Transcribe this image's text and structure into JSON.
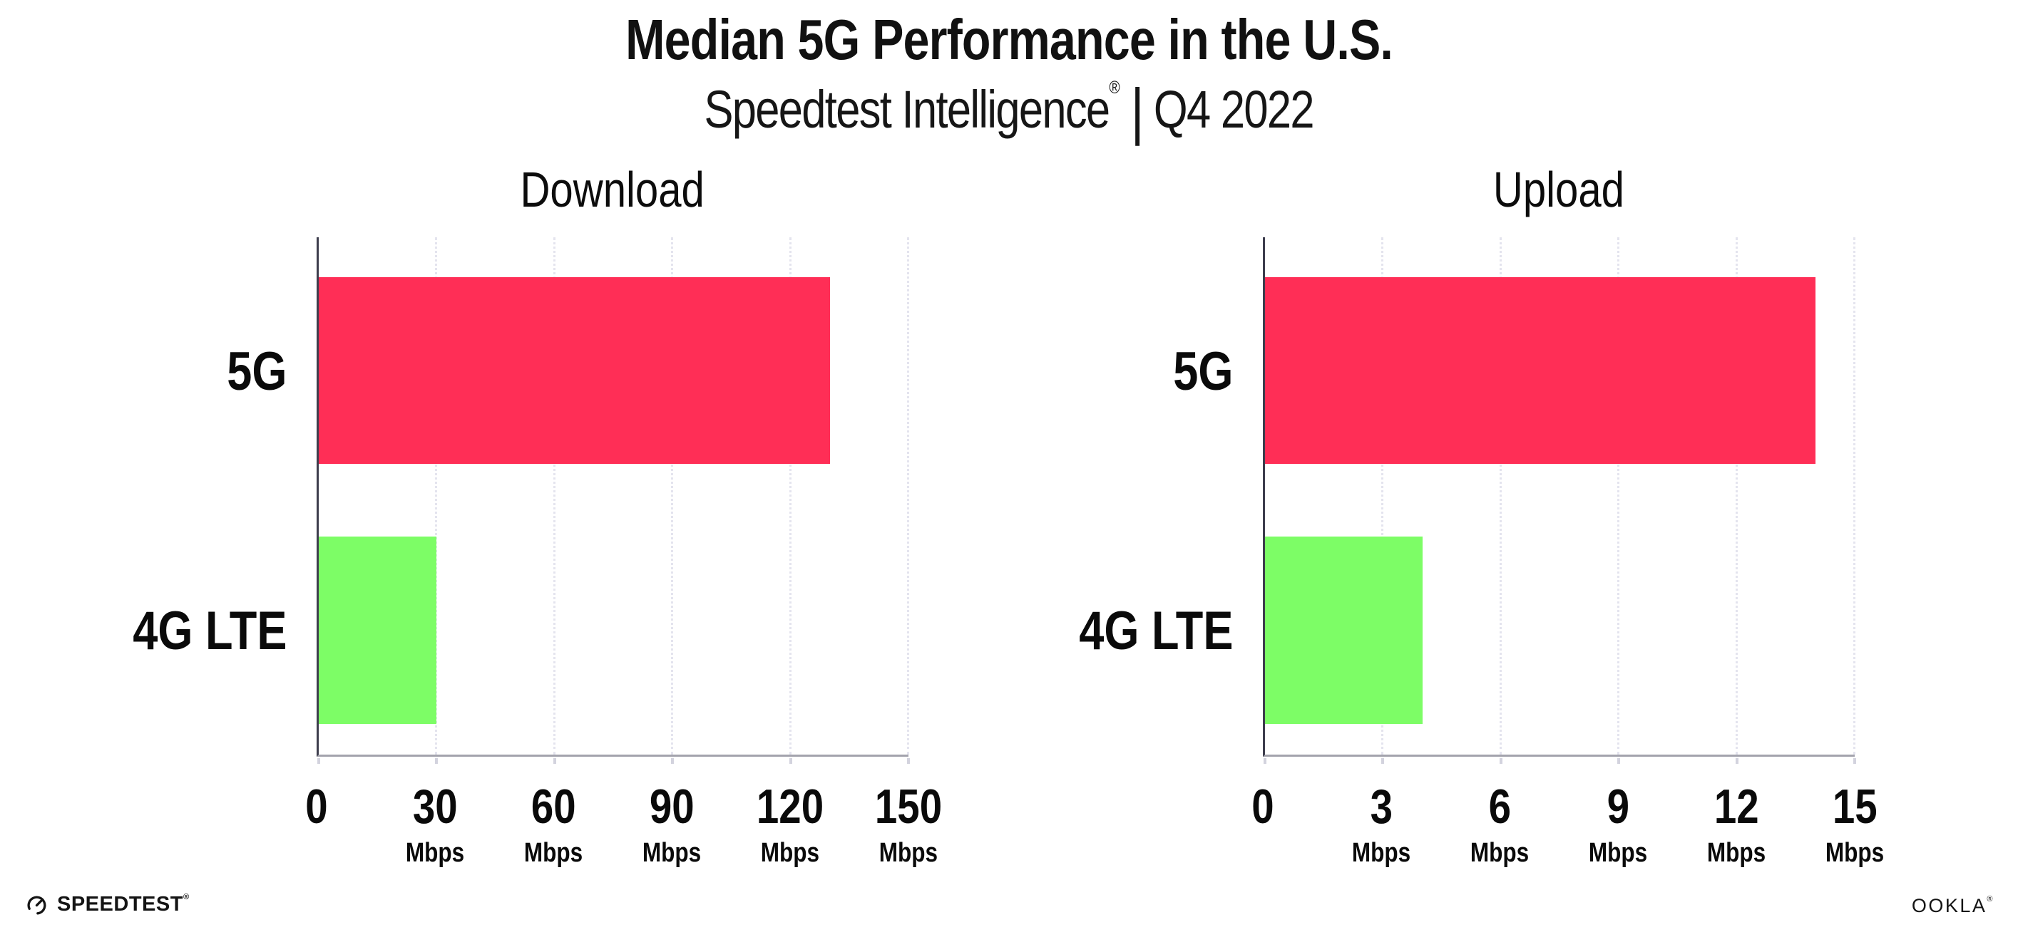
{
  "page": {
    "background": "#ffffff"
  },
  "header": {
    "title": "Median 5G Performance in the U.S.",
    "subtitle_brand": "Speedtest Intelligence",
    "subtitle_registered": "®",
    "subtitle_separator": "|",
    "subtitle_period": "Q4 2022"
  },
  "colors": {
    "bar_5g": "#FF2E56",
    "bar_4g_lte": "#7DFD66",
    "gridline": "#e4e4ee",
    "y_axis": "#3d3d4d",
    "x_axis": "#a3a3ad",
    "text": "#111111"
  },
  "chart_data": [
    {
      "type": "bar",
      "orientation": "horizontal",
      "title": "Download",
      "unit": "Mbps",
      "categories": [
        "5G",
        "4G LTE"
      ],
      "values": [
        130,
        30
      ],
      "xlim": [
        0,
        150
      ],
      "xticks": [
        0,
        30,
        60,
        90,
        120,
        150
      ],
      "series_colors": [
        "#FF2E56",
        "#7DFD66"
      ],
      "grid": "vertical-dotted",
      "legend": "none"
    },
    {
      "type": "bar",
      "orientation": "horizontal",
      "title": "Upload",
      "unit": "Mbps",
      "categories": [
        "5G",
        "4G LTE"
      ],
      "values": [
        14,
        4
      ],
      "xlim": [
        0,
        15
      ],
      "xticks": [
        0,
        3,
        6,
        9,
        12,
        15
      ],
      "series_colors": [
        "#FF2E56",
        "#7DFD66"
      ],
      "grid": "vertical-dotted",
      "legend": "none"
    }
  ],
  "footer": {
    "speedtest_label": "SPEEDTEST",
    "speedtest_mark": "®",
    "speedtest_icon": "speedtest-gauge-icon",
    "ookla_label": "OOKLA",
    "ookla_mark": "®"
  }
}
